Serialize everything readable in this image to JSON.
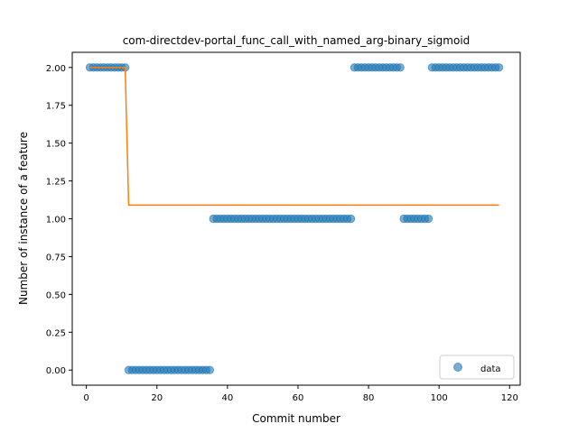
{
  "chart_data": {
    "type": "scatter",
    "title": "com-directdev-portal_func_call_with_named_arg-binary_sigmoid",
    "xlabel": "Commit number",
    "ylabel": "Number of instance of a feature",
    "xlim": [
      -4,
      123
    ],
    "ylim": [
      -0.1,
      2.1
    ],
    "xticks": [
      0,
      20,
      40,
      60,
      80,
      100,
      120
    ],
    "yticks": [
      0.0,
      0.25,
      0.5,
      0.75,
      1.0,
      1.25,
      1.5,
      1.75,
      2.0
    ],
    "xtick_labels": [
      "0",
      "20",
      "40",
      "60",
      "80",
      "100",
      "120"
    ],
    "ytick_labels": [
      "0.00",
      "0.25",
      "0.50",
      "0.75",
      "1.00",
      "1.25",
      "1.50",
      "1.75",
      "2.00"
    ],
    "legend": {
      "placement": "lower-right",
      "entries": [
        "data"
      ]
    },
    "grid": false,
    "colors": {
      "points": "#1f77b4",
      "fit": "#ff7f0e"
    },
    "series": [
      {
        "name": "data",
        "kind": "scatter",
        "segments": [
          {
            "x_start": 1,
            "x_end": 11,
            "y": 2
          },
          {
            "x_start": 12,
            "x_end": 35,
            "y": 0
          },
          {
            "x_start": 36,
            "x_end": 75,
            "y": 1
          },
          {
            "x_start": 76,
            "x_end": 89,
            "y": 2
          },
          {
            "x_start": 90,
            "x_end": 97,
            "y": 1
          },
          {
            "x_start": 98,
            "x_end": 117,
            "y": 2
          }
        ]
      },
      {
        "kind": "line",
        "x": [
          1,
          11,
          12,
          117
        ],
        "y": [
          2.0,
          2.0,
          1.09,
          1.09
        ]
      }
    ]
  }
}
